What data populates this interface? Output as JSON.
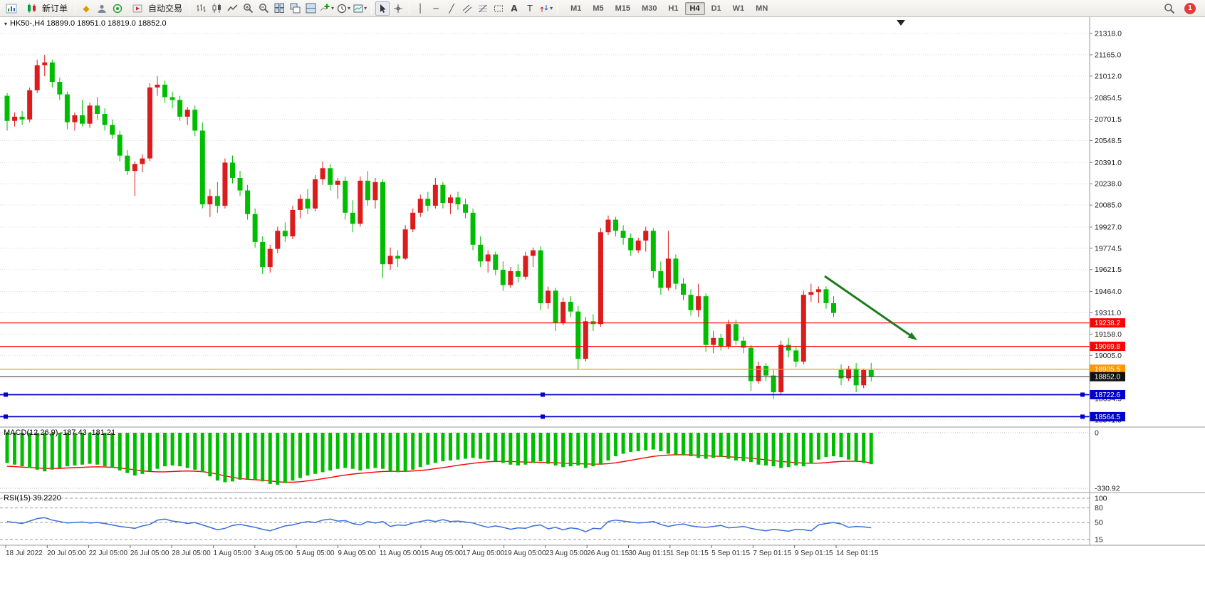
{
  "toolbar": {
    "new_order": "新订单",
    "autotrading": "自动交易",
    "timeframes": [
      "M1",
      "M5",
      "M15",
      "M30",
      "H1",
      "H4",
      "D1",
      "W1",
      "MN"
    ],
    "active_timeframe": "H4",
    "notification_badge": "1"
  },
  "chart": {
    "title": "HK50-,H4 18899.0 18951.0 18819.0 18852.0",
    "symbol": "HK50-",
    "period": "H4",
    "ohlc": {
      "open": "18899.0",
      "high": "18951.0",
      "low": "18819.0",
      "close": "18852.0"
    }
  },
  "price_axis": {
    "labels": [
      "21318.0",
      "21165.0",
      "21012.0",
      "20854.5",
      "20701.5",
      "20548.5",
      "20391.0",
      "20238.0",
      "20085.0",
      "19927.0",
      "19774.5",
      "19621.5",
      "19464.0",
      "19311.0",
      "19158.0",
      "19005.0",
      "18852.0",
      "18694.5",
      "18541.5"
    ]
  },
  "time_axis": {
    "labels": [
      "18 Jul 2022",
      "20 Jul 05:00",
      "22 Jul 05:00",
      "26 Jul 05:00",
      "28 Jul 05:00",
      "1 Aug 05:00",
      "3 Aug 05:00",
      "5 Aug 05:00",
      "9 Aug 05:00",
      "11 Aug 05:00",
      "15 Aug 05:00",
      "17 Aug 05:00",
      "19 Aug 05:00",
      "23 Aug 05:00",
      "26 Aug 01:15",
      "30 Aug 01:15",
      "1 Sep 01:15",
      "5 Sep 01:15",
      "7 Sep 01:15",
      "9 Sep 01:15",
      "14 Sep 01:15"
    ]
  },
  "hlines": [
    {
      "price": 19238.2,
      "label": "19238.2",
      "color": "#ff0000",
      "badge": "#ff0000",
      "selected": false
    },
    {
      "price": 19069.8,
      "label": "19069.8",
      "color": "#ff0000",
      "badge": "#ff0000",
      "selected": false
    },
    {
      "price": 18905.5,
      "label": "18905.5",
      "color": "#ff9800",
      "badge": "#ff9800",
      "selected": false
    },
    {
      "price": 18852.0,
      "label": "18852.0",
      "color": "#444444",
      "badge": "#111111",
      "selected": false
    },
    {
      "price": 18722.6,
      "label": "18722.6",
      "color": "#0000cc",
      "badge": "#0000cc",
      "selected": true
    },
    {
      "price": 18564.5,
      "label": "18564.5",
      "color": "#0000cc",
      "badge": "#0000cc",
      "selected": true
    }
  ],
  "macd": {
    "label": "MACD(12,26,9) -187.43 -181.21",
    "scale": [
      "0",
      "-330.92"
    ],
    "histogram_color": "#00bd00",
    "signal_color": "#ff0000"
  },
  "rsi": {
    "label": "RSI(15) 39.2220",
    "levels": [
      "100",
      "80",
      "50",
      "15"
    ],
    "line_color": "#3a6fd8"
  },
  "annotations": {
    "trend_arrow": {
      "color": "#1c7c1c",
      "direction": "down-right"
    }
  },
  "chart_data": {
    "type": "candlestick",
    "symbol": "HK50-",
    "timeframe": "H4",
    "up_color": "#dc1c1c",
    "down_color": "#00bd00",
    "price_range": [
      18500,
      21405
    ],
    "candles": [
      [
        20870,
        20890,
        20620,
        20690
      ],
      [
        20690,
        20750,
        20650,
        20720
      ],
      [
        20720,
        20760,
        20660,
        20700
      ],
      [
        20700,
        20930,
        20680,
        20910
      ],
      [
        20910,
        21130,
        20890,
        21090
      ],
      [
        21090,
        21165,
        21010,
        21110
      ],
      [
        21110,
        21130,
        20930,
        20970
      ],
      [
        20970,
        21000,
        20840,
        20880
      ],
      [
        20880,
        20900,
        20630,
        20680
      ],
      [
        20680,
        20750,
        20620,
        20730
      ],
      [
        20730,
        20840,
        20650,
        20670
      ],
      [
        20670,
        20820,
        20640,
        20800
      ],
      [
        20800,
        20860,
        20700,
        20740
      ],
      [
        20740,
        20780,
        20620,
        20660
      ],
      [
        20660,
        20700,
        20560,
        20590
      ],
      [
        20590,
        20620,
        20400,
        20440
      ],
      [
        20440,
        20480,
        20300,
        20330
      ],
      [
        20330,
        20400,
        20150,
        20380
      ],
      [
        20380,
        20450,
        20320,
        20420
      ],
      [
        20420,
        20960,
        20400,
        20930
      ],
      [
        20930,
        21010,
        20870,
        20950
      ],
      [
        20950,
        20980,
        20820,
        20860
      ],
      [
        20860,
        20900,
        20780,
        20840
      ],
      [
        20840,
        20870,
        20690,
        20720
      ],
      [
        20720,
        20790,
        20660,
        20770
      ],
      [
        20770,
        20800,
        20580,
        20620
      ],
      [
        20620,
        20680,
        20060,
        20090
      ],
      [
        20090,
        20200,
        20000,
        20150
      ],
      [
        20150,
        20250,
        20030,
        20080
      ],
      [
        20080,
        20420,
        20060,
        20390
      ],
      [
        20390,
        20440,
        20240,
        20280
      ],
      [
        20280,
        20330,
        20150,
        20190
      ],
      [
        20190,
        20230,
        19980,
        20020
      ],
      [
        20020,
        20060,
        19780,
        19820
      ],
      [
        19820,
        19860,
        19590,
        19640
      ],
      [
        19640,
        19800,
        19600,
        19770
      ],
      [
        19770,
        19930,
        19740,
        19900
      ],
      [
        19900,
        19960,
        19820,
        19860
      ],
      [
        19860,
        20080,
        19840,
        20050
      ],
      [
        20050,
        20160,
        19990,
        20130
      ],
      [
        20130,
        20200,
        20020,
        20060
      ],
      [
        20060,
        20300,
        20040,
        20270
      ],
      [
        20270,
        20400,
        20230,
        20350
      ],
      [
        20350,
        20380,
        20190,
        20230
      ],
      [
        20230,
        20280,
        20130,
        20260
      ],
      [
        20260,
        20290,
        19980,
        20030
      ],
      [
        20030,
        20120,
        19890,
        19950
      ],
      [
        19950,
        20290,
        19930,
        20260
      ],
      [
        20260,
        20330,
        20080,
        20120
      ],
      [
        20120,
        20280,
        20060,
        20250
      ],
      [
        20250,
        20270,
        19560,
        19660
      ],
      [
        19660,
        19780,
        19620,
        19720
      ],
      [
        19720,
        19760,
        19640,
        19700
      ],
      [
        19700,
        19940,
        19690,
        19910
      ],
      [
        19910,
        20060,
        19890,
        20030
      ],
      [
        20030,
        20160,
        20000,
        20130
      ],
      [
        20130,
        20180,
        20040,
        20080
      ],
      [
        20080,
        20280,
        20060,
        20230
      ],
      [
        20230,
        20250,
        20060,
        20100
      ],
      [
        20100,
        20160,
        20020,
        20140
      ],
      [
        20140,
        20180,
        20050,
        20090
      ],
      [
        20090,
        20130,
        19990,
        20030
      ],
      [
        20030,
        20060,
        19760,
        19800
      ],
      [
        19800,
        19860,
        19640,
        19680
      ],
      [
        19680,
        19760,
        19600,
        19730
      ],
      [
        19730,
        19750,
        19580,
        19620
      ],
      [
        19620,
        19680,
        19470,
        19510
      ],
      [
        19510,
        19640,
        19490,
        19610
      ],
      [
        19610,
        19660,
        19530,
        19570
      ],
      [
        19570,
        19750,
        19550,
        19720
      ],
      [
        19720,
        19780,
        19640,
        19760
      ],
      [
        19760,
        19790,
        19330,
        19380
      ],
      [
        19380,
        19500,
        19340,
        19470
      ],
      [
        19470,
        19490,
        19180,
        19240
      ],
      [
        19240,
        19420,
        19220,
        19390
      ],
      [
        19390,
        19430,
        19280,
        19320
      ],
      [
        19320,
        19360,
        18900,
        18980
      ],
      [
        18980,
        19280,
        18960,
        19250
      ],
      [
        19250,
        19300,
        19180,
        19230
      ],
      [
        19230,
        19920,
        19210,
        19890
      ],
      [
        19890,
        20010,
        19870,
        19980
      ],
      [
        19980,
        20000,
        19860,
        19900
      ],
      [
        19900,
        19940,
        19800,
        19850
      ],
      [
        19850,
        19880,
        19720,
        19760
      ],
      [
        19760,
        19850,
        19740,
        19830
      ],
      [
        19830,
        19930,
        19750,
        19900
      ],
      [
        19900,
        19920,
        19560,
        19610
      ],
      [
        19610,
        19680,
        19440,
        19490
      ],
      [
        19490,
        19900,
        19470,
        19700
      ],
      [
        19700,
        19730,
        19480,
        19520
      ],
      [
        19520,
        19560,
        19400,
        19440
      ],
      [
        19440,
        19480,
        19290,
        19330
      ],
      [
        19330,
        19520,
        19280,
        19430
      ],
      [
        19430,
        19450,
        19030,
        19080
      ],
      [
        19080,
        19180,
        19020,
        19130
      ],
      [
        19130,
        19160,
        19040,
        19070
      ],
      [
        19070,
        19260,
        19050,
        19230
      ],
      [
        19230,
        19260,
        19080,
        19110
      ],
      [
        19110,
        19140,
        19020,
        19060
      ],
      [
        19060,
        19080,
        18750,
        18820
      ],
      [
        18820,
        18960,
        18800,
        18930
      ],
      [
        18930,
        18950,
        18820,
        18860
      ],
      [
        18860,
        18900,
        18690,
        18740
      ],
      [
        18740,
        19110,
        18720,
        19080
      ],
      [
        19080,
        19130,
        18990,
        19040
      ],
      [
        19040,
        19070,
        18920,
        18960
      ],
      [
        18960,
        19470,
        18940,
        19440
      ],
      [
        19440,
        19520,
        19390,
        19460
      ],
      [
        19460,
        19500,
        19380,
        19480
      ],
      [
        19480,
        19500,
        19340,
        19380
      ],
      [
        19380,
        19430,
        19280,
        19310
      ],
      [
        18900,
        18940,
        18790,
        18840
      ],
      [
        18840,
        18930,
        18820,
        18910
      ],
      [
        18910,
        18950,
        18740,
        18790
      ],
      [
        18790,
        18910,
        18770,
        18899
      ],
      [
        18899,
        18951,
        18819,
        18852
      ]
    ],
    "macd_histogram": [
      -180,
      -190,
      -200,
      -210,
      -220,
      -230,
      -220,
      -210,
      -200,
      -195,
      -190,
      -185,
      -190,
      -200,
      -210,
      -225,
      -240,
      -255,
      -245,
      -230,
      -215,
      -200,
      -195,
      -200,
      -210,
      -220,
      -235,
      -260,
      -285,
      -295,
      -290,
      -280,
      -275,
      -280,
      -290,
      -305,
      -310,
      -300,
      -285,
      -270,
      -255,
      -245,
      -235,
      -225,
      -215,
      -210,
      -215,
      -225,
      -215,
      -210,
      -215,
      -230,
      -235,
      -230,
      -220,
      -205,
      -190,
      -180,
      -170,
      -165,
      -160,
      -155,
      -150,
      -155,
      -160,
      -170,
      -180,
      -190,
      -195,
      -190,
      -180,
      -170,
      -185,
      -195,
      -205,
      -200,
      -195,
      -210,
      -200,
      -190,
      -165,
      -140,
      -125,
      -115,
      -110,
      -105,
      -100,
      -110,
      -125,
      -130,
      -135,
      -140,
      -150,
      -155,
      -150,
      -145,
      -155,
      -165,
      -170,
      -175,
      -190,
      -195,
      -200,
      -210,
      -205,
      -195,
      -200,
      -185,
      -160,
      -145,
      -140,
      -145,
      -160,
      -170,
      -180,
      -187.43
    ],
    "macd_signal": [
      -200,
      -202,
      -205,
      -207,
      -210,
      -212,
      -213,
      -212,
      -210,
      -208,
      -206,
      -204,
      -203,
      -204,
      -206,
      -210,
      -215,
      -221,
      -227,
      -231,
      -233,
      -233,
      -231,
      -229,
      -228,
      -229,
      -232,
      -238,
      -247,
      -257,
      -266,
      -273,
      -277,
      -280,
      -283,
      -287,
      -292,
      -295,
      -295,
      -292,
      -287,
      -281,
      -274,
      -267,
      -259,
      -252,
      -246,
      -242,
      -238,
      -234,
      -231,
      -230,
      -230,
      -230,
      -228,
      -225,
      -220,
      -214,
      -208,
      -201,
      -194,
      -188,
      -182,
      -177,
      -173,
      -171,
      -170,
      -171,
      -173,
      -175,
      -176,
      -176,
      -177,
      -179,
      -181,
      -183,
      -184,
      -186,
      -187,
      -187,
      -184,
      -179,
      -172,
      -164,
      -156,
      -148,
      -141,
      -136,
      -133,
      -131,
      -131,
      -132,
      -134,
      -137,
      -139,
      -141,
      -143,
      -146,
      -149,
      -152,
      -156,
      -161,
      -166,
      -171,
      -175,
      -178,
      -181,
      -182,
      -181,
      -178,
      -174,
      -171,
      -170,
      -170,
      -172,
      -181.21
    ],
    "rsi_values": [
      52,
      50,
      48,
      53,
      58,
      60,
      55,
      52,
      49,
      50,
      51,
      49,
      50,
      48,
      45,
      42,
      40,
      38,
      43,
      46,
      55,
      57,
      53,
      51,
      48,
      50,
      45,
      40,
      35,
      38,
      44,
      46,
      43,
      40,
      36,
      33,
      38,
      43,
      45,
      49,
      52,
      50,
      55,
      57,
      53,
      54,
      48,
      45,
      52,
      49,
      52,
      42,
      45,
      44,
      49,
      52,
      55,
      52,
      56,
      52,
      53,
      51,
      49,
      44,
      40,
      43,
      40,
      36,
      39,
      38,
      43,
      45,
      37,
      40,
      35,
      39,
      37,
      31,
      38,
      37,
      52,
      55,
      53,
      51,
      49,
      50,
      52,
      46,
      42,
      45,
      47,
      43,
      41,
      40,
      42,
      44,
      39,
      40,
      42,
      38,
      35,
      33,
      36,
      34,
      32,
      36,
      35,
      33,
      45,
      48,
      50,
      47,
      40,
      42,
      41,
      39.222
    ]
  }
}
